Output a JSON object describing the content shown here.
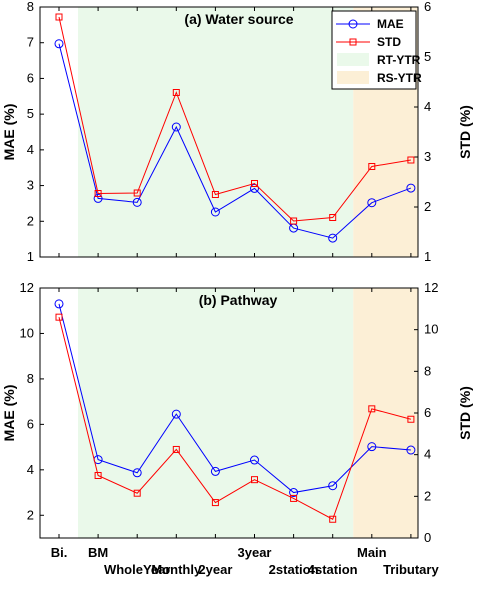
{
  "chart_data": [
    {
      "type": "line",
      "title": "(a) Water source",
      "ylabel": "MAE (%)",
      "y2label": "STD (%)",
      "ylim": [
        1,
        8
      ],
      "y2lim": [
        1,
        6
      ],
      "yticks": [
        1,
        2,
        3,
        4,
        5,
        6,
        7,
        8
      ],
      "y2ticks": [
        1,
        2,
        3,
        4,
        5,
        6
      ],
      "categories": [
        "Bi.",
        "BM",
        "WholeYear",
        "Monthly",
        "2year",
        "3year",
        "2station",
        "4station",
        "Main",
        "Tributary"
      ],
      "series": [
        {
          "name": "MAE",
          "axis": "left",
          "color": "#0000ff",
          "marker": "circle",
          "values": [
            6.97,
            2.64,
            2.53,
            4.64,
            2.26,
            2.92,
            1.81,
            1.53,
            2.52,
            2.93
          ]
        },
        {
          "name": "STD",
          "axis": "right",
          "color": "#ff0000",
          "marker": "square",
          "values": [
            5.8,
            2.27,
            2.28,
            4.29,
            2.25,
            2.47,
            1.72,
            1.79,
            2.81,
            2.94
          ]
        }
      ],
      "shaded_regions": [
        {
          "name": "RT-YTR",
          "color": "#eaf9ea",
          "from": "BM",
          "to": "4station"
        },
        {
          "name": "RS-YTR",
          "color": "#fcefd6",
          "from": "Main",
          "to": "Tributary"
        }
      ],
      "legend": {
        "position": "top-right",
        "entries": [
          "MAE",
          "STD",
          "RT-YTR",
          "RS-YTR"
        ]
      },
      "grid": false
    },
    {
      "type": "line",
      "title": "(b) Pathway",
      "ylabel": "MAE (%)",
      "y2label": "STD (%)",
      "ylim": [
        1,
        12
      ],
      "y2lim": [
        0,
        12
      ],
      "yticks": [
        2,
        4,
        6,
        8,
        10,
        12
      ],
      "y2ticks": [
        0,
        2,
        4,
        6,
        8,
        10,
        12
      ],
      "categories": [
        "Bi.",
        "BM",
        "WholeYear",
        "Monthly",
        "2year",
        "3year",
        "2station",
        "4station",
        "Main",
        "Tributary"
      ],
      "series": [
        {
          "name": "MAE",
          "axis": "left",
          "color": "#0000ff",
          "marker": "circle",
          "values": [
            11.3,
            4.45,
            3.87,
            6.45,
            3.93,
            4.43,
            3.0,
            3.3,
            5.02,
            4.87
          ]
        },
        {
          "name": "STD",
          "axis": "right",
          "color": "#ff0000",
          "marker": "square",
          "values": [
            10.6,
            3.0,
            2.15,
            4.25,
            1.7,
            2.8,
            1.9,
            0.9,
            6.2,
            5.7
          ]
        }
      ],
      "shaded_regions": [
        {
          "name": "RT-YTR",
          "color": "#eaf9ea",
          "from": "BM",
          "to": "4station"
        },
        {
          "name": "RS-YTR",
          "color": "#fcefd6",
          "from": "Main",
          "to": "Tributary"
        }
      ],
      "grid": false
    }
  ],
  "xtick_labels": [
    {
      "text": "Bi.",
      "row": 1
    },
    {
      "text": "BM",
      "row": 1
    },
    {
      "text": "WholeYear",
      "row": 2
    },
    {
      "text": "Monthly",
      "row": 2
    },
    {
      "text": "2year",
      "row": 2
    },
    {
      "text": "3year",
      "row": 1
    },
    {
      "text": "2station",
      "row": 2
    },
    {
      "text": "4station",
      "row": 2
    },
    {
      "text": "Main",
      "row": 1
    },
    {
      "text": "Tributary",
      "row": 2
    }
  ]
}
